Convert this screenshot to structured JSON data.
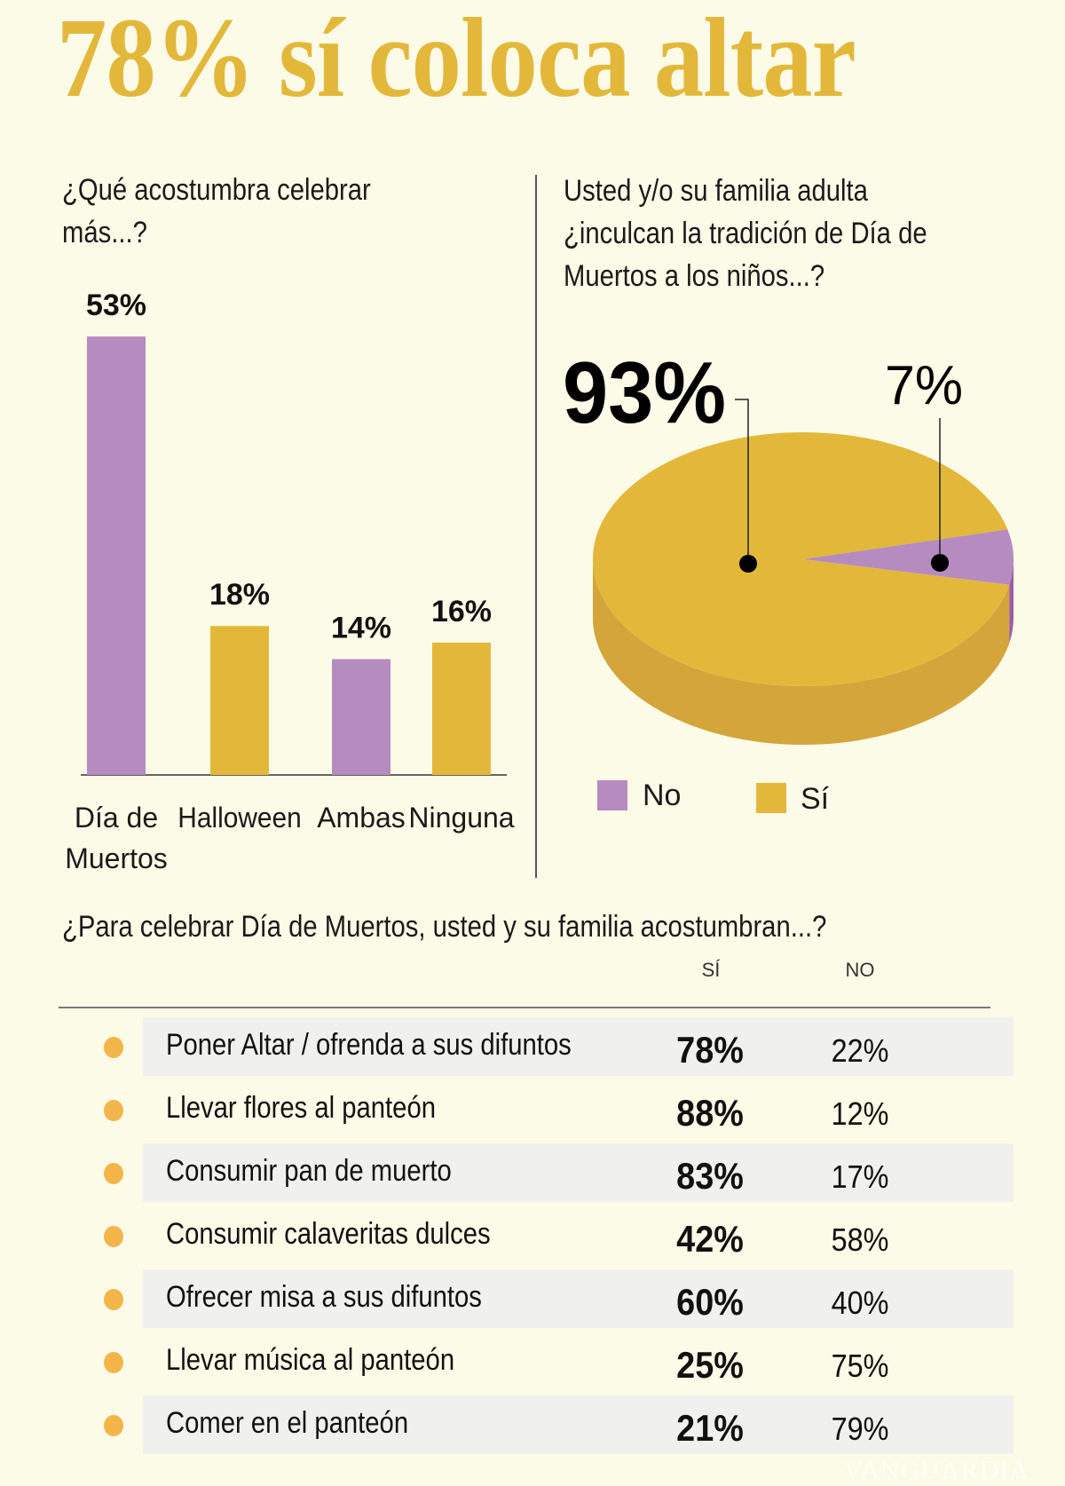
{
  "title": "78% sí coloca altar",
  "colors": {
    "gold": "#e3b83a",
    "gold_side": "#d4a53a",
    "purple": "#b68bc0",
    "purple_side": "#9a5fa8",
    "row_bg": "#f0f0ee",
    "bullet": "#f3b54a",
    "background": "#fcfbe7"
  },
  "chart_data": [
    {
      "type": "bar",
      "title": "¿Qué acostumbra celebrar más...?",
      "title_lines": [
        "¿Qué acostumbra celebrar",
        "más...?"
      ],
      "categories": [
        "Día de Muertos",
        "Halloween",
        "Ambas",
        "Ninguna"
      ],
      "category_lines": [
        [
          "Día de",
          "Muertos"
        ],
        [
          "Halloween"
        ],
        [
          "Ambas"
        ],
        [
          "Ninguna"
        ]
      ],
      "values": [
        53,
        18,
        14,
        16
      ],
      "value_labels": [
        "53%",
        "18%",
        "14%",
        "16%"
      ],
      "bar_colors": [
        "#b68bc0",
        "#e3b83a",
        "#b68bc0",
        "#e3b83a"
      ],
      "unit": "%",
      "grid": false
    },
    {
      "type": "pie",
      "title": "Usted y/o su familia adulta ¿inculcan la tradición de Día de Muertos a los niños...?",
      "title_lines": [
        "Usted y/o su familia adulta",
        "¿inculcan la tradición de Día de",
        "Muertos a los niños...?"
      ],
      "slices": [
        {
          "name": "No",
          "value": 7,
          "label": "7%",
          "color": "#b68bc0"
        },
        {
          "name": "Sí",
          "value": 93,
          "label": "93%",
          "color": "#e3b83a"
        }
      ],
      "style": "3d",
      "legend": "bottom",
      "legend_items": [
        "No",
        "Sí"
      ]
    },
    {
      "type": "table",
      "title": "¿Para celebrar Día de Muertos, usted y su familia acostumbran...?",
      "columns": [
        "SÍ",
        "NO"
      ],
      "rows": [
        {
          "label": "Poner Altar / ofrenda a sus difuntos",
          "si": "78%",
          "no": "22%"
        },
        {
          "label": "Llevar flores al panteón",
          "si": "88%",
          "no": "12%"
        },
        {
          "label": "Consumir pan de muerto",
          "si": "83%",
          "no": "17%"
        },
        {
          "label": "Consumir calaveritas dulces",
          "si": "42%",
          "no": "58%"
        },
        {
          "label": "Ofrecer misa a sus difuntos",
          "si": "60%",
          "no": "40%"
        },
        {
          "label": "Llevar música al panteón",
          "si": "25%",
          "no": "75%"
        },
        {
          "label": "Comer en el panteón",
          "si": "21%",
          "no": "79%"
        }
      ]
    }
  ],
  "watermark": "VANGUARDIA"
}
